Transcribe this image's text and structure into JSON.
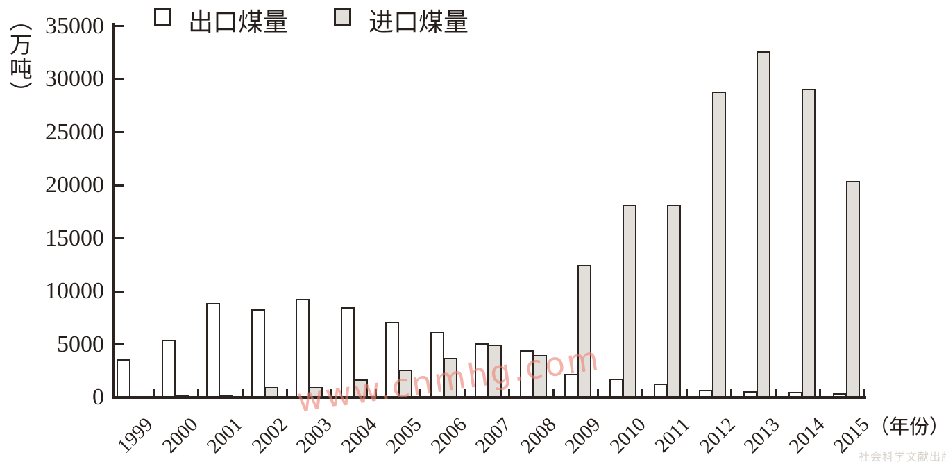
{
  "legend": {
    "export_label": "出口煤量",
    "import_label": "进口煤量"
  },
  "watermarks": {
    "site": "www.cnmhg.com",
    "publisher": "社会科学文献出版社"
  },
  "colors": {
    "axis_and_outline": "#2b2320",
    "export_fill": "#ffffff",
    "import_fill": "#e2dfdb",
    "watermark_site_pink": "#ee8273",
    "watermark_publisher_gray": "#d9d3cd",
    "text": "#241d1a"
  },
  "chart_data": {
    "type": "bar",
    "title": "",
    "ylabel": "（万吨）",
    "xlabel": "（年份）",
    "ylim": [
      0,
      35000
    ],
    "ytick_step": 5000,
    "ytick_labels": [
      "0",
      "5000",
      "10000",
      "15000",
      "20000",
      "25000",
      "30000",
      "35000"
    ],
    "grid": false,
    "legend_position": "top",
    "categories": [
      "1999",
      "2000",
      "2001",
      "2002",
      "2003",
      "2004",
      "2005",
      "2006",
      "2007",
      "2008",
      "2009",
      "2010",
      "2011",
      "2012",
      "2013",
      "2014",
      "2015"
    ],
    "series": [
      {
        "name": "出口煤量",
        "fill": "#ffffff",
        "values": [
          3600,
          5400,
          8900,
          8300,
          9300,
          8500,
          7100,
          6200,
          5100,
          4450,
          2200,
          1750,
          1300,
          700,
          600,
          550,
          400
        ]
      },
      {
        "name": "进口煤量",
        "fill": "#e2dfdb",
        "values": [
          0,
          200,
          250,
          1000,
          1000,
          1700,
          2600,
          3700,
          4950,
          4000,
          12500,
          18200,
          18200,
          28800,
          32600,
          29100,
          20400
        ]
      }
    ]
  }
}
